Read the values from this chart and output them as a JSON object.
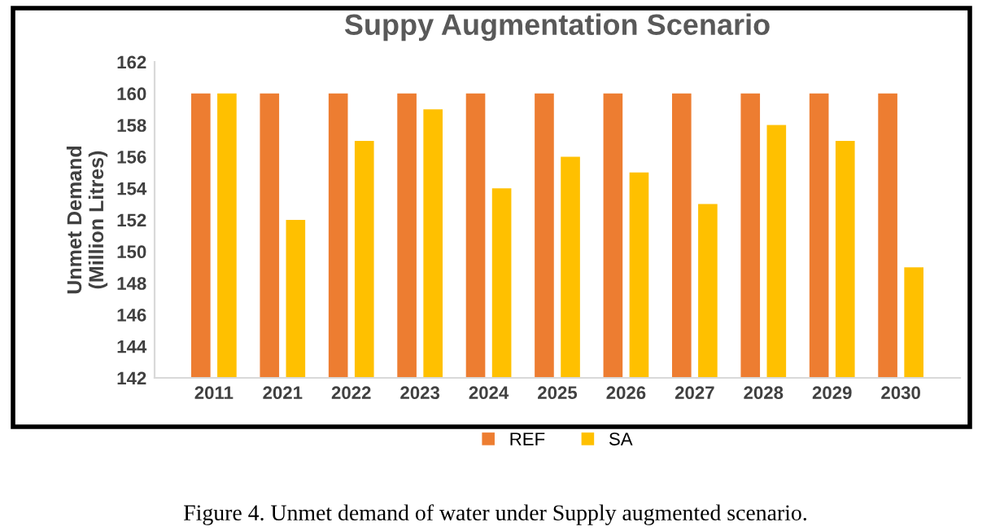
{
  "chart_data": {
    "type": "bar",
    "title": "Suppy Augmentation Scenario",
    "ylabel": "Unmet Demand\n(Million Litres)",
    "categories": [
      "2011",
      "2021",
      "2022",
      "2023",
      "2024",
      "2025",
      "2026",
      "2027",
      "2028",
      "2029",
      "2030"
    ],
    "series": [
      {
        "name": "REF",
        "color": "#ed7d31",
        "values": [
          160,
          160,
          160,
          160,
          160,
          160,
          160,
          160,
          160,
          160,
          160
        ]
      },
      {
        "name": "SA",
        "color": "#ffc000",
        "values": [
          160,
          152,
          157,
          159,
          154,
          156,
          155,
          153,
          158,
          157,
          149
        ]
      }
    ],
    "ylim": [
      142,
      162
    ],
    "yticks": [
      142,
      144,
      146,
      148,
      150,
      152,
      154,
      156,
      158,
      160,
      162
    ],
    "grid": false,
    "legend": "bottom",
    "annotations": [
      "Figure 4. Unmet demand of water under Supply augmented scenario."
    ]
  }
}
